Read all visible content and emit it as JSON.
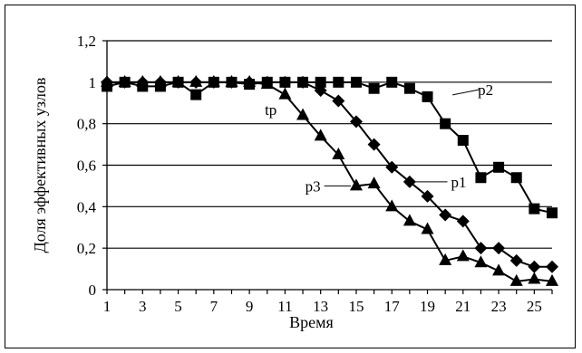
{
  "chart_data": {
    "type": "line",
    "title": "",
    "xlabel": "Время",
    "ylabel": "Доля эффективных узлов",
    "xlim": [
      1,
      26
    ],
    "ylim": [
      0,
      1.2
    ],
    "grid": true,
    "legend": "none",
    "x": [
      1,
      2,
      3,
      4,
      5,
      6,
      7,
      8,
      9,
      10,
      11,
      12,
      13,
      14,
      15,
      16,
      17,
      18,
      19,
      20,
      21,
      22,
      23,
      24,
      25,
      26
    ],
    "x_ticks": [
      1,
      3,
      5,
      7,
      9,
      11,
      13,
      15,
      17,
      19,
      21,
      23,
      25
    ],
    "y_ticks": [
      0,
      0.2,
      0.4,
      0.6,
      0.8,
      1,
      1.2
    ],
    "x_tick_labels": [
      "1",
      "3",
      "5",
      "7",
      "9",
      "11",
      "13",
      "15",
      "17",
      "19",
      "21",
      "23",
      "25"
    ],
    "y_tick_labels": [
      "0",
      "0,2",
      "0,4",
      "0,6",
      "0,8",
      "1",
      "1,2"
    ],
    "series": [
      {
        "name": "p1",
        "marker": "diamond",
        "color": "#000000",
        "values": [
          1,
          1,
          1,
          1,
          1,
          1,
          1,
          1,
          1,
          1,
          1,
          1,
          0.96,
          0.91,
          0.81,
          0.7,
          0.59,
          0.52,
          0.45,
          0.36,
          0.33,
          0.2,
          0.2,
          0.14,
          0.11,
          0.11
        ]
      },
      {
        "name": "p2",
        "marker": "square",
        "color": "#000000",
        "values": [
          0.98,
          1,
          0.98,
          0.98,
          1,
          0.94,
          1,
          1,
          0.99,
          1,
          1,
          1,
          1,
          1,
          1,
          0.97,
          1,
          0.97,
          0.93,
          0.8,
          0.72,
          0.54,
          0.59,
          0.54,
          0.39,
          0.37
        ]
      },
      {
        "name": "p3",
        "marker": "triangle",
        "color": "#000000",
        "values": [
          1,
          1,
          1,
          1,
          1,
          1,
          1,
          1,
          1,
          0.99,
          0.94,
          0.84,
          0.74,
          0.65,
          0.5,
          0.51,
          0.4,
          0.33,
          0.29,
          0.14,
          0.16,
          0.13,
          0.09,
          0.04,
          0.05,
          0.04
        ]
      }
    ],
    "annotations": [
      {
        "text": "p2",
        "x": 20,
        "y": 0.93,
        "series": "p2"
      },
      {
        "text": "p1",
        "x": 20,
        "y": 0.66,
        "series": "p1"
      },
      {
        "text": "p3",
        "x": 15,
        "y": 0.5,
        "series": "p3"
      },
      {
        "text": "tp",
        "x": 11,
        "y": 0.94,
        "series": "p3"
      }
    ]
  }
}
